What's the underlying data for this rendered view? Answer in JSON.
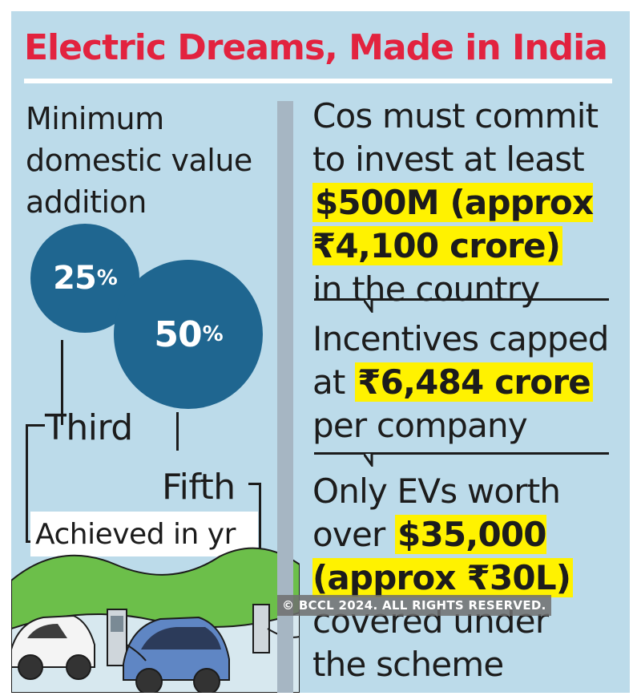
{
  "title": "Electric Dreams, Made in India",
  "left": {
    "heading": "Minimum domestic value addition",
    "circles": [
      {
        "value": "25",
        "unit": "%",
        "year": "Third"
      },
      {
        "value": "50",
        "unit": "%",
        "year": "Fifth"
      }
    ],
    "achieved_label": "Achieved in yr"
  },
  "right": {
    "point1": {
      "before": "Cos must commit to invest at least",
      "highlight": "$500M (approx ₹4,100 crore)",
      "after": "in the country"
    },
    "point2": {
      "before": "Incentives capped at",
      "highlight": "₹6,484 crore",
      "after": "per company"
    },
    "point3": {
      "before": "Only EVs worth over",
      "highlight": "$35,000 (approx ₹30L)",
      "after": "covered under the scheme"
    }
  },
  "watermark": "© BCCL 2024. ALL RIGHTS RESERVED.",
  "colors": {
    "background": "#bcdbea",
    "title": "#e2233f",
    "circle": "#1f6690",
    "highlight": "#fff200"
  }
}
